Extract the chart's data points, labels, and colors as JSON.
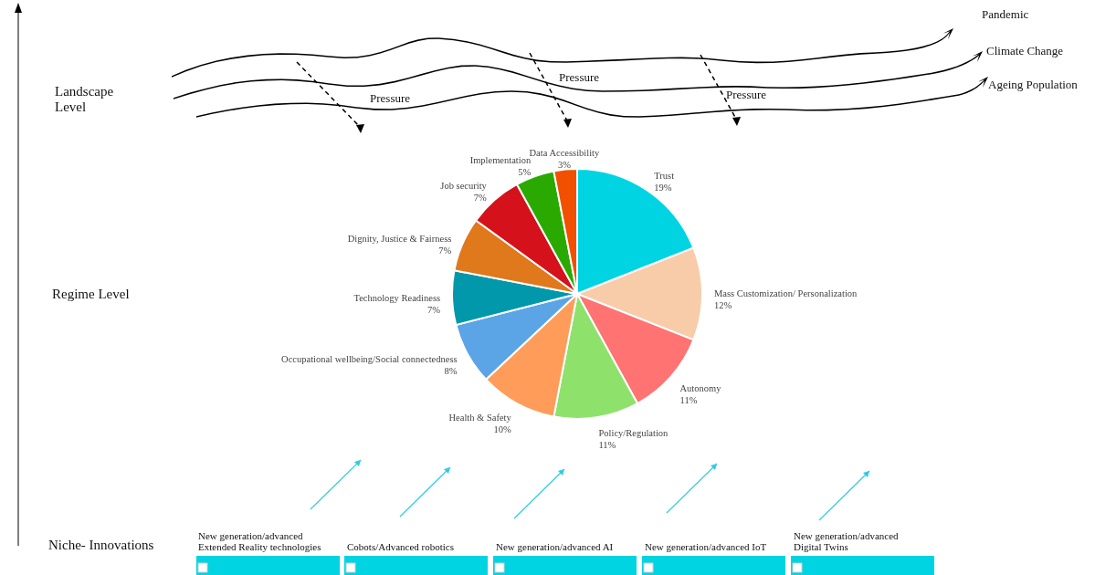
{
  "chart_data": {
    "type": "pie",
    "categories": [
      "Trust",
      "Mass Customization/ Personalization",
      "Autonomy",
      "Policy/Regulation",
      "Health & Safety",
      "Occupational wellbeing/Social connectedness",
      "Technology Readiness",
      "Dignity, Justice & Fairness",
      "Job security",
      "Implementation",
      "Data Accessibility"
    ],
    "values": [
      19,
      12,
      11,
      11,
      10,
      8,
      7,
      7,
      7,
      5,
      3
    ],
    "value_labels": [
      "19%",
      "12%",
      "11%",
      "11%",
      "10%",
      "8%",
      "7%",
      "7%",
      "7%",
      "5%",
      "3%"
    ],
    "colors": [
      "#00d4e3",
      "#f8cba9",
      "#ff7373",
      "#8ee26b",
      "#ff9c59",
      "#5ba4e6",
      "#0098aa",
      "#e0781c",
      "#d5111b",
      "#2aaa00",
      "#f05000"
    ],
    "annotations": [
      "Pandemic",
      "Climate Change",
      "Ageing Population",
      "Pressure",
      "Pressure",
      "Pressure",
      "Landscape Level",
      "Regime Level",
      "Niche- Innovations",
      "New generation/advanced Extended Reality technologies",
      "Cobots/Advanced robotics",
      "New generation/advanced AI",
      "New generation/advanced IoT",
      "New generation/advanced Digital Twins"
    ]
  }
}
